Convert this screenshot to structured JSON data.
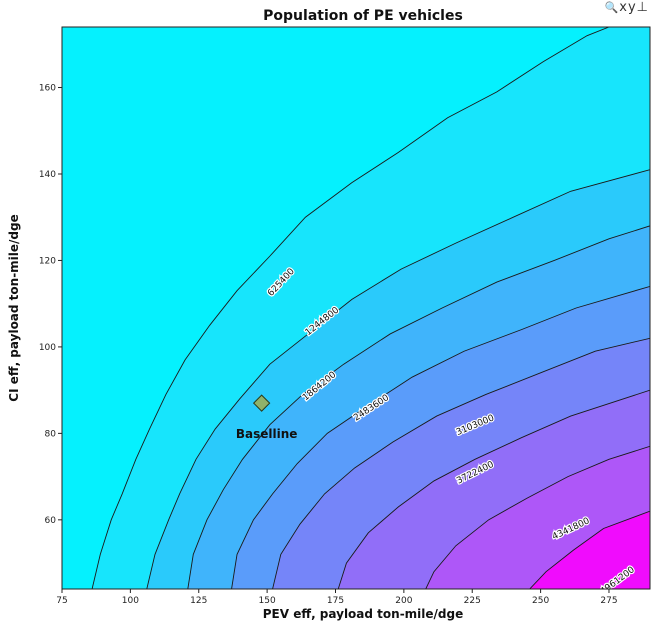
{
  "toolbar": {
    "zoom_icon": "magnifier-icon",
    "zoom_glyph": "🔍",
    "glyph2": "x",
    "glyph3": "y",
    "glyph4": "⊥"
  },
  "chart_data": {
    "type": "contour",
    "title": "Population of PE vehicles",
    "xlabel": "PEV eff, payload ton-mile/dge",
    "ylabel": "CI eff, payload ton-mile/dge",
    "xlim": [
      75,
      290
    ],
    "ylim": [
      44,
      174
    ],
    "x_ticks": [
      75,
      100,
      125,
      150,
      175,
      200,
      225,
      250,
      275
    ],
    "y_ticks": [
      60,
      80,
      100,
      120,
      140,
      160
    ],
    "grid": false,
    "legend": "none",
    "colormap": [
      "#00ffff",
      "#ff00ff"
    ],
    "contour_levels": [
      {
        "label": "625400",
        "label_pos": [
          155,
          115
        ],
        "color": "#17e5fc",
        "curve": [
          [
            86,
            44
          ],
          [
            89,
            52
          ],
          [
            93,
            60
          ],
          [
            97,
            66
          ],
          [
            102,
            74
          ],
          [
            107,
            81
          ],
          [
            113,
            89
          ],
          [
            120,
            97
          ],
          [
            129,
            105
          ],
          [
            139,
            113
          ],
          [
            151,
            121
          ],
          [
            164,
            130
          ],
          [
            181,
            138
          ],
          [
            198,
            145
          ],
          [
            216,
            153
          ],
          [
            234,
            159
          ],
          [
            251,
            166
          ],
          [
            267,
            172
          ],
          [
            275,
            174
          ]
        ]
      },
      {
        "label": "1244800",
        "label_pos": [
          170,
          106
        ],
        "color": "#2acafb",
        "curve": [
          [
            106,
            44
          ],
          [
            109,
            52
          ],
          [
            114,
            60
          ],
          [
            118,
            66
          ],
          [
            124,
            74
          ],
          [
            131,
            81
          ],
          [
            140,
            88
          ],
          [
            151,
            96
          ],
          [
            165,
            103
          ],
          [
            181,
            111
          ],
          [
            199,
            118
          ],
          [
            219,
            124
          ],
          [
            240,
            130
          ],
          [
            261,
            136
          ],
          [
            290,
            141
          ]
        ]
      },
      {
        "label": "1864200",
        "label_pos": [
          169,
          91
        ],
        "color": "#40b4fb",
        "curve": [
          [
            121,
            44
          ],
          [
            123,
            52
          ],
          [
            128,
            60
          ],
          [
            134,
            67
          ],
          [
            141,
            74
          ],
          [
            151,
            82
          ],
          [
            163,
            89
          ],
          [
            178,
            96
          ],
          [
            195,
            103
          ],
          [
            214,
            109
          ],
          [
            234,
            115
          ],
          [
            255,
            120
          ],
          [
            275,
            125
          ],
          [
            290,
            128
          ]
        ]
      },
      {
        "label": "2483600",
        "label_pos": [
          188,
          86
        ],
        "color": "#5a9cfa",
        "curve": [
          [
            137,
            44
          ],
          [
            139,
            52
          ],
          [
            145,
            60
          ],
          [
            152,
            66
          ],
          [
            161,
            73
          ],
          [
            172,
            80
          ],
          [
            186,
            86
          ],
          [
            203,
            93
          ],
          [
            222,
            99
          ],
          [
            243,
            104
          ],
          [
            263,
            109
          ],
          [
            290,
            114
          ]
        ]
      },
      {
        "label": "3103000",
        "label_pos": [
          226,
          82
        ],
        "color": "#7585f9",
        "curve": [
          [
            152,
            44
          ],
          [
            155,
            52
          ],
          [
            162,
            59
          ],
          [
            171,
            66
          ],
          [
            182,
            72
          ],
          [
            196,
            78
          ],
          [
            212,
            84
          ],
          [
            230,
            89
          ],
          [
            250,
            94
          ],
          [
            270,
            99
          ],
          [
            290,
            102
          ]
        ]
      },
      {
        "label": "3722400",
        "label_pos": [
          226,
          71
        ],
        "color": "#916ef8",
        "curve": [
          [
            176,
            44
          ],
          [
            179,
            50
          ],
          [
            187,
            57
          ],
          [
            198,
            63
          ],
          [
            211,
            69
          ],
          [
            226,
            74
          ],
          [
            243,
            79
          ],
          [
            261,
            84
          ],
          [
            290,
            90
          ]
        ]
      },
      {
        "label": "4341800",
        "label_pos": [
          261,
          58
        ],
        "color": "#ae57f8",
        "curve": [
          [
            208,
            44
          ],
          [
            211,
            48
          ],
          [
            219,
            54
          ],
          [
            231,
            60
          ],
          [
            245,
            65
          ],
          [
            260,
            70
          ],
          [
            275,
            74
          ],
          [
            290,
            77
          ]
        ]
      },
      {
        "label": "4961200",
        "label_pos": [
          278,
          46
        ],
        "color": "#cc3ef6",
        "curve": [
          [
            246,
            44
          ],
          [
            252,
            48
          ],
          [
            262,
            53
          ],
          [
            273,
            58
          ],
          [
            290,
            62
          ]
        ]
      }
    ],
    "top_fill_color": "#05f1fe",
    "points": [
      {
        "label": "Baselline",
        "x": 148,
        "y": 87,
        "marker": "diamond",
        "color": "#8fb26a"
      }
    ],
    "colorbar": {
      "bottom_right_color": "#f00cfd"
    }
  }
}
